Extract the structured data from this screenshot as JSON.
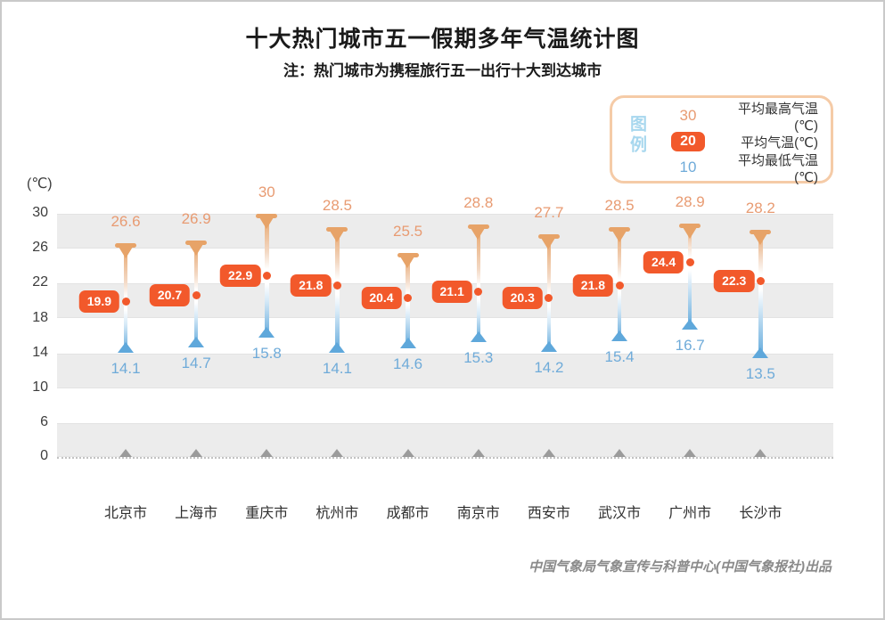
{
  "window": {
    "title": "十大热门城市五一假期多年气温统计图",
    "subtitle": "注：热门城市为携程旅行五一出行十大到达城市",
    "attribution": "中国气象局气象宣传与科普中心(中国气象报社)出品"
  },
  "legend": {
    "title": "图例",
    "items": [
      {
        "sample": "30",
        "type": "max",
        "label": "平均最高气温(℃)"
      },
      {
        "sample": "20",
        "type": "avg",
        "label": "平均气温(℃)"
      },
      {
        "sample": "10",
        "type": "min",
        "label": "平均最低气温(℃)"
      }
    ]
  },
  "chart_data": {
    "type": "scatter",
    "subtype": "floating-range-thermometer",
    "title": "十大热门城市五一假期多年气温统计图",
    "categories": [
      "北京市",
      "上海市",
      "重庆市",
      "杭州市",
      "成都市",
      "南京市",
      "西安市",
      "武汉市",
      "广州市",
      "长沙市"
    ],
    "series": [
      {
        "name": "平均最高气温(℃)",
        "values": [
          26.6,
          26.9,
          30,
          28.5,
          25.5,
          28.8,
          27.7,
          28.5,
          28.9,
          28.2
        ]
      },
      {
        "name": "平均气温(℃)",
        "values": [
          19.9,
          20.7,
          22.9,
          21.8,
          20.4,
          21.1,
          20.3,
          21.8,
          24.4,
          22.3
        ]
      },
      {
        "name": "平均最低气温(℃)",
        "values": [
          14.1,
          14.7,
          15.8,
          14.1,
          14.6,
          15.3,
          14.2,
          15.4,
          16.7,
          13.5
        ]
      }
    ],
    "ylabel": "(℃)",
    "yticks": [
      30,
      26,
      22,
      18,
      14,
      10,
      6,
      0
    ],
    "ylim": [
      0,
      30
    ],
    "grid_bands": [
      [
        26,
        30
      ],
      [
        18,
        22
      ],
      [
        10,
        14
      ],
      [
        0,
        6
      ]
    ],
    "grid": "banded-rows",
    "legend_position": "top-right"
  },
  "colors": {
    "max_text": "#E89B72",
    "avg_accent": "#F2592B",
    "min_text": "#6FABD9",
    "cap_top": "#E7A368",
    "cap_bottom": "#5FA8DB",
    "legend_border": "#F5CBA7",
    "legend_title": "#A7D7EE",
    "grid_band": "#ECECEC",
    "baseline_marker": "#9B9B9B"
  }
}
